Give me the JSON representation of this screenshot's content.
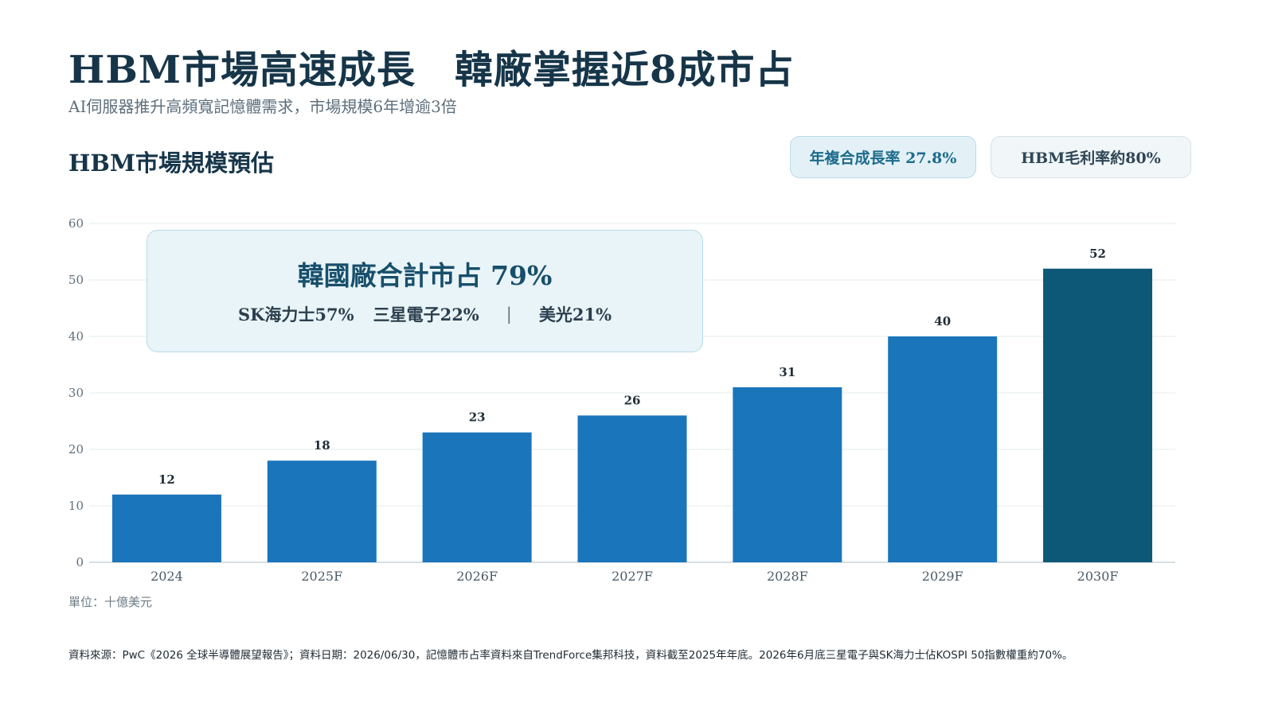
{
  "header": {
    "title": "HBM市場高速成長　韓廠掌握近8成市占",
    "subtitle": "AI伺服器推升高頻寬記憶體需求，市場規模6年增逾3倍"
  },
  "section": {
    "title": "HBM市場規模預估"
  },
  "badges": {
    "cagr": "年複合成長率 27.8%",
    "margin": "HBM毛利率約80%"
  },
  "callout": {
    "title": "韓國廠合計市占 79%",
    "sk": "SK海力士57%",
    "samsung": "三星電子22%",
    "separator": "|",
    "micron": "美光21%"
  },
  "unit": "單位：十億美元",
  "source": "資料來源：PwC《2026 全球半導體展望報告》；資料日期：2026/06/30，記憶體市占率資料來自TrendForce集邦科技，資料截至2025年年底。2026年6月底三星電子與SK海力士佔KOSPI 50指數權重約70%。",
  "colors": {
    "bar": "#1b75bb",
    "bar_highlight": "#0d5877",
    "grid": "#e6ebee",
    "axis": "#c9d4db"
  },
  "chart_data": {
    "type": "bar",
    "title": "HBM市場規模預估",
    "categories": [
      "2024",
      "2025F",
      "2026F",
      "2027F",
      "2028F",
      "2029F",
      "2030F"
    ],
    "values": [
      12,
      18,
      23,
      26,
      31,
      40,
      52
    ],
    "highlight_index": 6,
    "ylim": [
      0,
      60
    ],
    "yticks": [
      0,
      10,
      20,
      30,
      40,
      50,
      60
    ],
    "xlabel": "",
    "ylabel": "",
    "grid": true,
    "legend": "none"
  }
}
